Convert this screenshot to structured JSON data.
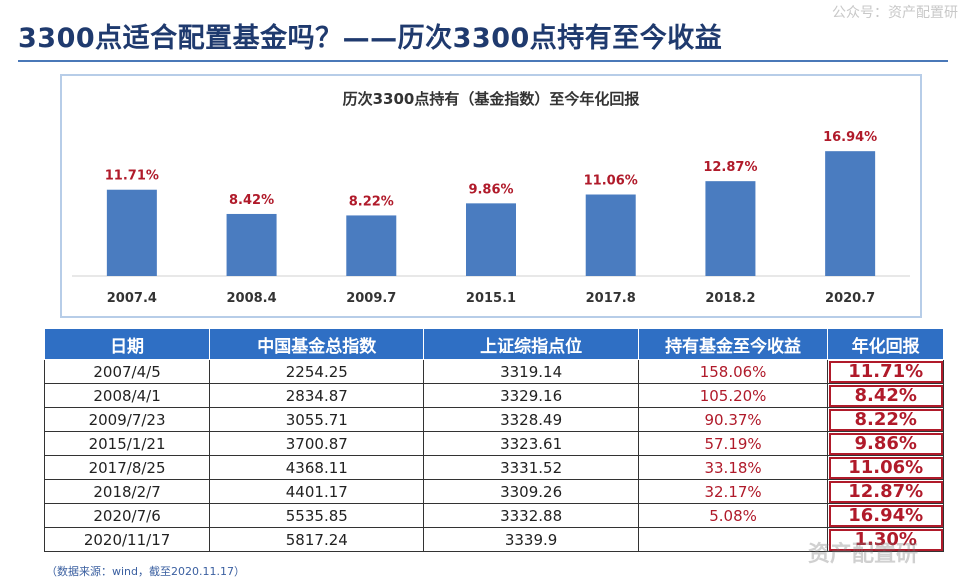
{
  "header": {
    "title": "3300点适合配置基金吗？——历次3300点持有至今收益",
    "watermark": "公众号：资产配置研"
  },
  "chart_data": {
    "type": "bar",
    "title": "历次3300点持有（基金指数）至今年化回报",
    "categories": [
      "2007.4",
      "2008.4",
      "2009.7",
      "2015.1",
      "2017.8",
      "2018.2",
      "2020.7"
    ],
    "values": [
      11.71,
      8.42,
      8.22,
      9.86,
      11.06,
      12.87,
      16.94
    ],
    "labels": [
      "11.71%",
      "8.42%",
      "8.22%",
      "9.86%",
      "11.06%",
      "12.87%",
      "16.94%"
    ],
    "ylim": [
      0,
      19
    ],
    "bar_color": "#4a7cc0",
    "label_color": "#b01a2a",
    "grid": false
  },
  "table": {
    "headers": [
      "日期",
      "中国基金总指数",
      "上证综指点位",
      "持有基金至今收益",
      "年化回报"
    ],
    "rows": [
      [
        "2007/4/5",
        "2254.25",
        "3319.14",
        "158.06%",
        "11.71%"
      ],
      [
        "2008/4/1",
        "2834.87",
        "3329.16",
        "105.20%",
        "8.42%"
      ],
      [
        "2009/7/23",
        "3055.71",
        "3328.49",
        "90.37%",
        "8.22%"
      ],
      [
        "2015/1/21",
        "3700.87",
        "3323.61",
        "57.19%",
        "9.86%"
      ],
      [
        "2017/8/25",
        "4368.11",
        "3331.52",
        "33.18%",
        "11.06%"
      ],
      [
        "2018/2/7",
        "4401.17",
        "3309.26",
        "32.17%",
        "12.87%"
      ],
      [
        "2020/7/6",
        "5535.85",
        "3332.88",
        "5.08%",
        "16.94%"
      ],
      [
        "2020/11/17",
        "5817.24",
        "3339.9",
        "",
        "1.30%"
      ]
    ]
  },
  "source": "（数据来源：wind，截至2020.11.17）",
  "bottom_watermark": "资产配置研",
  "colors": {
    "title": "#1f3a6e",
    "header_bg": "#2f6fc4",
    "accent_red": "#b01a2a"
  }
}
